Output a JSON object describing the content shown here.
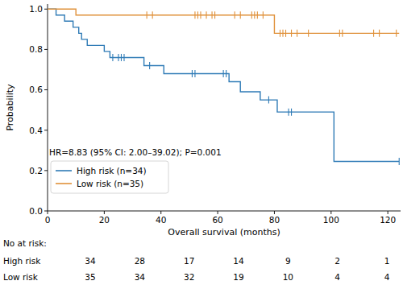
{
  "chart_data": {
    "type": "step",
    "x_label": "Overall survival (months)",
    "y_label": "Probability",
    "xlim": [
      0,
      124.5
    ],
    "ylim": [
      0,
      1.025
    ],
    "xticks": [
      0,
      20,
      40,
      60,
      80,
      100,
      120
    ],
    "yticks": [
      {
        "value": 0,
        "label": "0.0"
      },
      0.2,
      0.4,
      0.6,
      0.8,
      {
        "value": 1,
        "label": "1.0"
      }
    ],
    "grid": false,
    "legend": "lower left",
    "annotation": "HR=8.83 (95% CI: 2.00–39.02); P=0.001",
    "series": [
      {
        "name": "High risk (n=34)",
        "color": "#2f7bb6",
        "x": [
          0,
          3,
          6,
          9,
          11,
          12,
          14,
          20,
          22,
          34,
          41,
          64,
          68,
          75,
          81,
          101,
          124
        ],
        "values": [
          1,
          0.97,
          0.94,
          0.91,
          0.88,
          0.85,
          0.82,
          0.79,
          0.76,
          0.72,
          0.68,
          0.64,
          0.59,
          0.55,
          0.49,
          0.245,
          0.245
        ],
        "censor_x": [
          23,
          25,
          26,
          27,
          36,
          51,
          52,
          62,
          63,
          78,
          85,
          86,
          124
        ],
        "censor_values": [
          0.76,
          0.76,
          0.76,
          0.76,
          0.72,
          0.68,
          0.68,
          0.68,
          0.68,
          0.55,
          0.49,
          0.49,
          0.245
        ]
      },
      {
        "name": "Low risk (n=35)",
        "color": "#e0913a",
        "x": [
          0,
          10,
          80,
          124
        ],
        "values": [
          1,
          0.97,
          0.88,
          0.88
        ],
        "censor_x": [
          35,
          37,
          52,
          53,
          54,
          56,
          58,
          59,
          66,
          68,
          72,
          73,
          74,
          76,
          82,
          83,
          84,
          86,
          88,
          92,
          103,
          104,
          115,
          117,
          123
        ],
        "censor_values": [
          0.97,
          0.97,
          0.97,
          0.97,
          0.97,
          0.97,
          0.97,
          0.97,
          0.97,
          0.97,
          0.97,
          0.97,
          0.97,
          0.97,
          0.88,
          0.88,
          0.88,
          0.88,
          0.88,
          0.88,
          0.88,
          0.88,
          0.88,
          0.88,
          0.88
        ]
      }
    ],
    "risk_table": {
      "title": "No at risk:",
      "rows": [
        {
          "label": "High risk",
          "values": [
            34,
            28,
            17,
            14,
            9,
            2,
            1
          ]
        },
        {
          "label": "Low risk",
          "values": [
            35,
            34,
            32,
            19,
            10,
            4,
            4
          ]
        }
      ]
    }
  }
}
